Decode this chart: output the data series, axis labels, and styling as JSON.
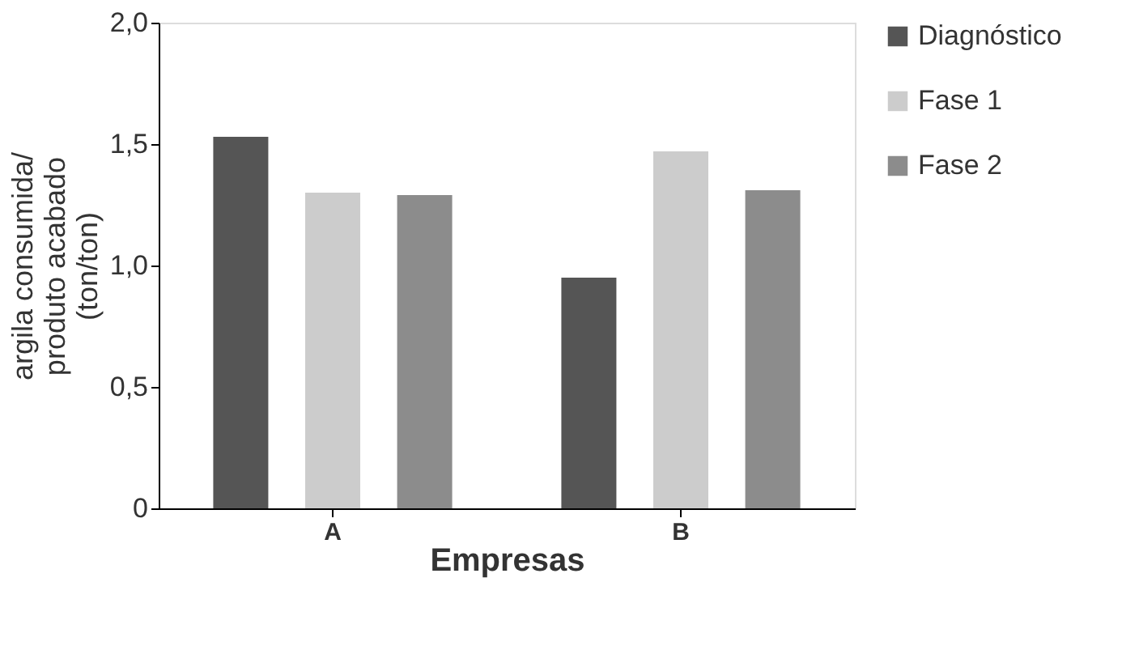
{
  "chart_data": {
    "type": "bar",
    "xlabel": "Empresas",
    "ylabel": "argila consumida/\nproduto acabado\n(ton/ton)",
    "categories": [
      "A",
      "B"
    ],
    "series": [
      {
        "name": "Diagnóstico",
        "color": "#555555",
        "values": [
          1.53,
          0.95
        ]
      },
      {
        "name": "Fase 1",
        "color": "#cccccc",
        "values": [
          1.3,
          1.47
        ]
      },
      {
        "name": "Fase 2",
        "color": "#8c8c8c",
        "values": [
          1.29,
          1.31
        ]
      }
    ],
    "ylim": [
      0,
      2.0
    ],
    "yticks": [
      0,
      {
        "value": 0.5,
        "label": "0,5"
      },
      {
        "value": 1.0,
        "label": "1,0"
      },
      {
        "value": 1.5,
        "label": "1,5"
      },
      {
        "value": 2.0,
        "label": "2,0"
      }
    ],
    "grid": false,
    "legend": "right"
  }
}
